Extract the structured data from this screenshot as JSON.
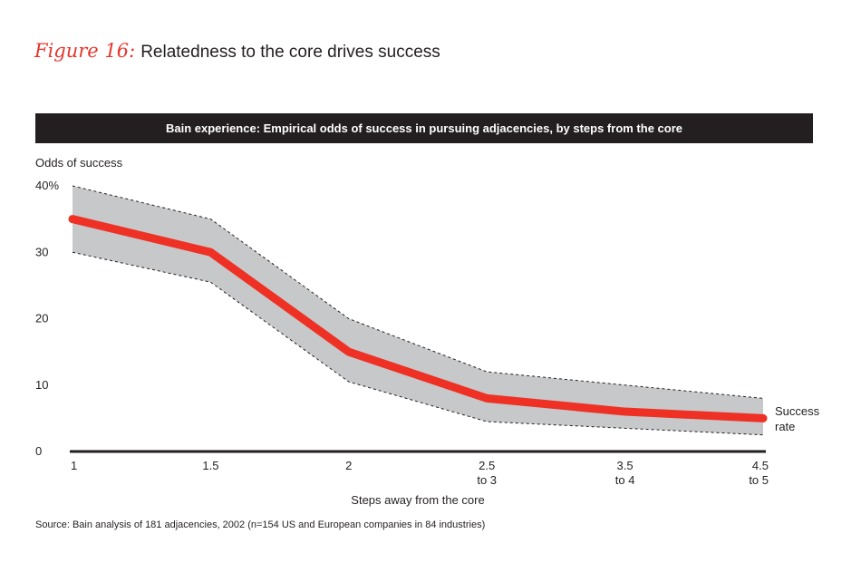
{
  "figure": {
    "label": "Figure 16:",
    "title": "Relatedness to the core drives success"
  },
  "banner": "Bain experience: Empirical odds of success in pursuing adjacencies, by steps from the core",
  "source": "Source: Bain analysis of 181 adjacencies, 2002 (n=154 US and European companies in 84 industries)",
  "colors": {
    "line": "#ee3124",
    "band": "#c7c8ca",
    "banner": "#231f20",
    "accent": "#e8352c"
  },
  "chart_data": {
    "type": "line",
    "title": "Bain experience: Empirical odds of success in pursuing adjacencies, by steps from the core",
    "ylabel": "Odds of success",
    "xlabel": "Steps away from the core",
    "ylim": [
      0,
      40
    ],
    "yticks": [
      "0",
      "10",
      "20",
      "30",
      "40%"
    ],
    "yticks_values": [
      0,
      10,
      20,
      30,
      40
    ],
    "categories": [
      [
        "1"
      ],
      [
        "1.5"
      ],
      [
        "2"
      ],
      [
        "2.5",
        "to 3"
      ],
      [
        "3.5",
        "to 4"
      ],
      [
        "4.5",
        "to 5"
      ]
    ],
    "series": [
      {
        "name": "Success rate",
        "values": [
          35,
          30,
          15,
          8,
          6,
          5
        ]
      }
    ],
    "band": {
      "upper": [
        40,
        35,
        20,
        12,
        10,
        8
      ],
      "lower": [
        30,
        25.5,
        10.5,
        4.5,
        3.5,
        2.5
      ]
    },
    "series_label": [
      "Success",
      "rate"
    ],
    "grid": false
  }
}
